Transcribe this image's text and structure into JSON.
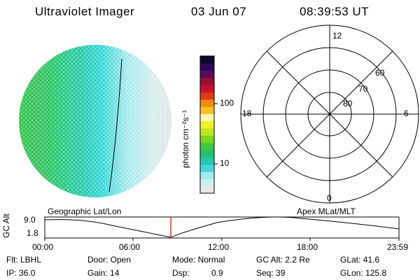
{
  "header": {
    "title": "Ultraviolet Imager",
    "date": "03 Jun 07",
    "time": "08:39:53 UT"
  },
  "colorbar": {
    "label": "photon cm⁻²s⁻¹",
    "ticks": [
      "100",
      "10"
    ],
    "colors": [
      "#e8e8e8",
      "#cdeff3",
      "#9fe9ef",
      "#44d6d8",
      "#22c8b0",
      "#22c06c",
      "#3cc840",
      "#7ad81e",
      "#bce61c",
      "#eef028",
      "#f7f7a8",
      "#f8c020",
      "#f08c10",
      "#e23a10",
      "#c8102a",
      "#9a1030",
      "#5a0c58",
      "#2a0a58",
      "#0a0a2a"
    ]
  },
  "polar_grid": {
    "mlt_labels": [
      "12",
      "18",
      "6",
      "0"
    ],
    "lat_labels": [
      "60",
      "70",
      "80"
    ]
  },
  "timeline": {
    "ylabel": "GC Alt",
    "yticks": [
      "9.0",
      "1.8"
    ],
    "left_label": "Geographic Lat/Lon",
    "right_label": "Apex  MLat/MLT",
    "xticks": [
      "00:00",
      "06:00",
      "12:00",
      "18:00",
      "23:59"
    ],
    "marker_color": "#e00000"
  },
  "info": {
    "flt": "Flt: LBHL",
    "ip": "IP: 36.0",
    "door": "Door: Open",
    "gain": "Gain: 14",
    "mode": "Mode: Normal",
    "dsp_label": "Dsp:",
    "dsp_value": "0.9",
    "gcalt": "GC Alt: 2.2 Re",
    "seq": "Seq: 39",
    "glat": "GLat:  41.6",
    "glon": "GLon: 125.8"
  }
}
